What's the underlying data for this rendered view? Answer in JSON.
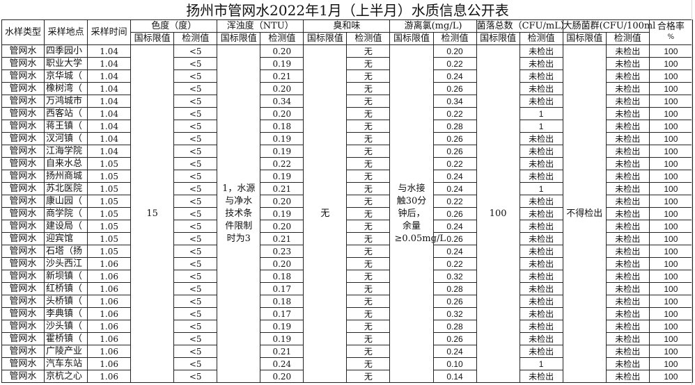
{
  "title": "扬州市管网水2022年1月（上半月）水质信息公开表",
  "headers": {
    "type": "水样类型",
    "location": "采样地点",
    "time": "采样时间",
    "color": "色度（度）",
    "turbidity": "浑浊度（NTU）",
    "odor": "臭和味",
    "chlorine": "游离氯(mg/L)",
    "colony": "菌落总数（CFU/mL）",
    "coliform": "大肠菌群(CFU/100ml",
    "rate": "合格率",
    "rate_unit": "%",
    "limit": "国标限值",
    "measured": "检测值"
  },
  "limits": {
    "color": "15",
    "turbidity": "1，水源与净水技术条件限制时为3",
    "odor": "无",
    "chlorine": "与水接触30分钟后，余量≥0.05mg/L",
    "colony": "100",
    "coliform": "不得检出"
  },
  "rows": [
    [
      "管网水",
      "四季园小",
      "1.04",
      "<5",
      "0.20",
      "无",
      "0.20",
      "未检出",
      "未检出",
      "100"
    ],
    [
      "管网水",
      "职业大学",
      "1.04",
      "<5",
      "0.19",
      "无",
      "0.22",
      "未检出",
      "未检出",
      "100"
    ],
    [
      "管网水",
      "京华城（",
      "1.04",
      "<5",
      "0.21",
      "无",
      "0.24",
      "未检出",
      "未检出",
      "100"
    ],
    [
      "管网水",
      "橡树湾（",
      "1.04",
      "<5",
      "0.20",
      "无",
      "0.26",
      "未检出",
      "未检出",
      "100"
    ],
    [
      "管网水",
      "万鸿城市",
      "1.04",
      "<5",
      "0.34",
      "无",
      "0.34",
      "未检出",
      "未检出",
      "100"
    ],
    [
      "管网水",
      "西客站（",
      "1.04",
      "<5",
      "0.20",
      "无",
      "0.22",
      "1",
      "未检出",
      "100"
    ],
    [
      "管网水",
      "蒋王镇（",
      "1.04",
      "<5",
      "0.18",
      "无",
      "0.28",
      "1",
      "未检出",
      "100"
    ],
    [
      "管网水",
      "汊河镇（",
      "1.04",
      "<5",
      "0.19",
      "无",
      "0.26",
      "未检出",
      "未检出",
      "100"
    ],
    [
      "管网水",
      "江海学院",
      "1.04",
      "<5",
      "0.19",
      "无",
      "0.26",
      "未检出",
      "未检出",
      "100"
    ],
    [
      "管网水",
      "自来水总",
      "1.05",
      "<5",
      "0.22",
      "无",
      "0.22",
      "未检出",
      "未检出",
      "100"
    ],
    [
      "管网水",
      "扬州商城",
      "1.05",
      "<5",
      "0.19",
      "无",
      "0.24",
      "未检出",
      "未检出",
      "100"
    ],
    [
      "管网水",
      "苏北医院",
      "1.05",
      "<5",
      "0.21",
      "无",
      "0.24",
      "1",
      "未检出",
      "100"
    ],
    [
      "管网水",
      "康山园（",
      "1.05",
      "<5",
      "0.20",
      "无",
      "0.22",
      "未检出",
      "未检出",
      "100"
    ],
    [
      "管网水",
      "商学院（",
      "1.05",
      "<5",
      "0.19",
      "无",
      "0.26",
      "未检出",
      "未检出",
      "100"
    ],
    [
      "管网水",
      "建设局（",
      "1.05",
      "<5",
      "0.20",
      "无",
      "0.24",
      "未检出",
      "未检出",
      "100"
    ],
    [
      "管网水",
      "迎宾馆",
      "1.05",
      "<5",
      "0.21",
      "无",
      "0.26",
      "未检出",
      "未检出",
      "100"
    ],
    [
      "管网水",
      "石塔（扬",
      "1.05",
      "<5",
      "0.23",
      "无",
      "0.24",
      "未检出",
      "未检出",
      "100"
    ],
    [
      "管网水",
      "沙头西江",
      "1.06",
      "<5",
      "0.20",
      "无",
      "0.22",
      "未检出",
      "未检出",
      "100"
    ],
    [
      "管网水",
      "新坝镇（",
      "1.06",
      "<5",
      "0.18",
      "无",
      "0.32",
      "未检出",
      "未检出",
      "100"
    ],
    [
      "管网水",
      "红桥镇（",
      "1.06",
      "<5",
      "0.17",
      "无",
      "0.28",
      "未检出",
      "未检出",
      "100"
    ],
    [
      "管网水",
      "头桥镇（",
      "1.06",
      "<5",
      "0.18",
      "无",
      "0.26",
      "未检出",
      "未检出",
      "100"
    ],
    [
      "管网水",
      "李典镇（",
      "1.06",
      "<5",
      "0.17",
      "无",
      "0.32",
      "未检出",
      "未检出",
      "100"
    ],
    [
      "管网水",
      "沙头镇（",
      "1.06",
      "<5",
      "0.19",
      "无",
      "0.28",
      "未检出",
      "未检出",
      "100"
    ],
    [
      "管网水",
      "霍桥镇（",
      "1.06",
      "<5",
      "0.19",
      "无",
      "0.26",
      "未检出",
      "未检出",
      "100"
    ],
    [
      "管网水",
      "广陵产业",
      "1.06",
      "<5",
      "0.21",
      "无",
      "0.24",
      "未检出",
      "未检出",
      "100"
    ],
    [
      "管网水",
      "汽车东站",
      "1.06",
      "<5",
      "0.24",
      "无",
      "0.10",
      "1",
      "未检出",
      "100"
    ],
    [
      "管网水",
      "京杭之心",
      "1.06",
      "<5",
      "0.20",
      "无",
      "0.14",
      "未检出",
      "未检出",
      "100"
    ]
  ]
}
